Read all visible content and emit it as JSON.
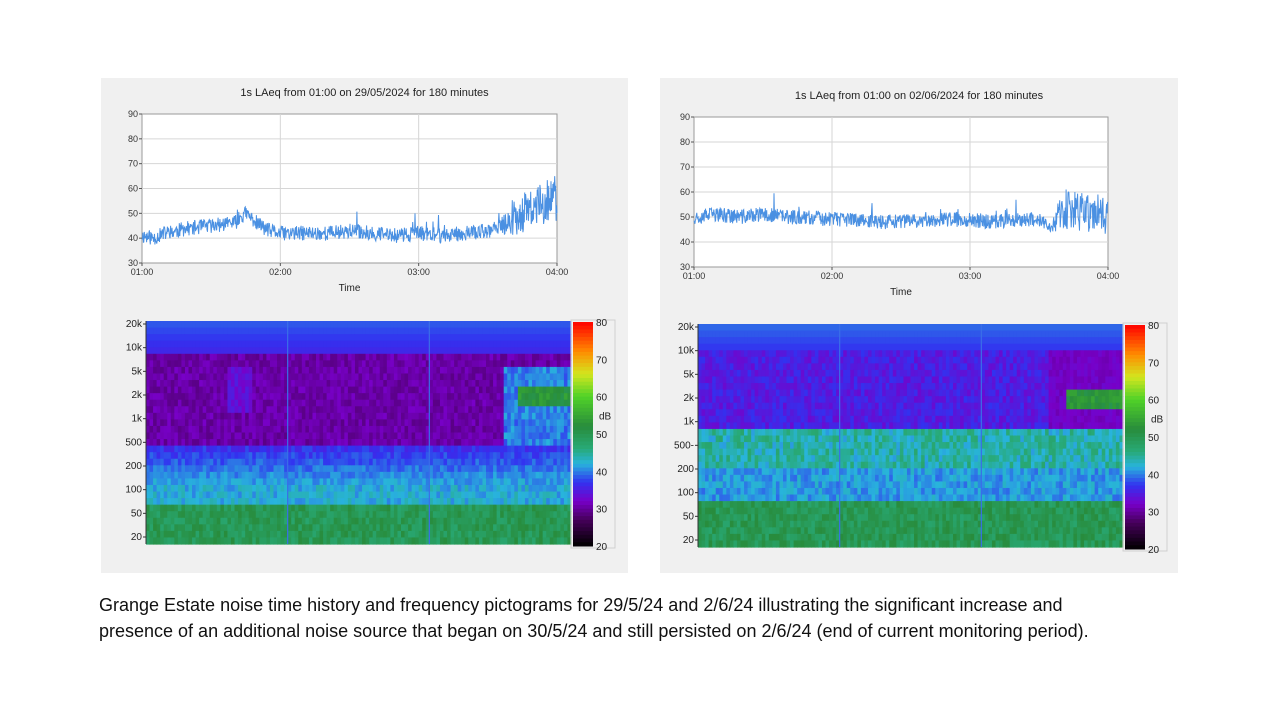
{
  "caption": "Grange Estate noise time history and frequency pictograms for 29/5/24 and 2/6/24 illustrating the significant increase and presence of an additional noise source that began on 30/5/24 and still persisted on 2/6/24 (end of current monitoring period).",
  "colors": {
    "line": "#4a90e2",
    "grid": "#d6d6d6",
    "panel": "#f0f0f0"
  },
  "chart_data": [
    {
      "type": "line",
      "title": "1s LAeq from 01:00 on 29/05/2024 for 180 minutes",
      "xlabel": "Time",
      "ylabel": "",
      "xlim": [
        0,
        180
      ],
      "ylim": [
        30,
        90
      ],
      "x_ticks": [
        "01:00",
        "02:00",
        "03:00",
        "04:00"
      ],
      "y_ticks": [
        30,
        40,
        50,
        60,
        70,
        80,
        90
      ],
      "grid": true,
      "series": [
        {
          "x": [
            0,
            5,
            10,
            20,
            30,
            40,
            45,
            50,
            55,
            60,
            70,
            80,
            90,
            100,
            110,
            120,
            130,
            140,
            150,
            155,
            160,
            165,
            170,
            175,
            180
          ],
          "y": [
            41,
            40,
            42,
            44,
            45,
            46,
            50,
            46,
            43,
            42,
            42,
            42,
            43,
            42,
            41,
            42,
            41,
            42,
            43,
            44,
            48,
            50,
            52,
            55,
            56
          ],
          "spread": [
            3,
            3,
            3,
            3,
            3,
            3,
            3,
            3,
            3,
            3,
            3,
            3,
            3,
            3,
            3,
            3,
            3,
            3,
            3,
            3,
            7,
            8,
            8,
            9,
            10
          ]
        }
      ]
    },
    {
      "type": "heatmap",
      "y_ticks": [
        "20k",
        "10k",
        "5k",
        "2k",
        "1k",
        "500",
        "200",
        "100",
        "50",
        "20"
      ],
      "colorbar_ticks": [
        80,
        70,
        60,
        50,
        40,
        30,
        20
      ],
      "colorbar_label": "dB",
      "zlim": [
        20,
        80
      ]
    },
    {
      "type": "line",
      "title": "1s LAeq from 01:00 on 02/06/2024 for 180 minutes",
      "xlabel": "Time",
      "ylabel": "",
      "xlim": [
        0,
        180
      ],
      "ylim": [
        30,
        90
      ],
      "x_ticks": [
        "01:00",
        "02:00",
        "03:00",
        "04:00"
      ],
      "y_ticks": [
        30,
        40,
        50,
        60,
        70,
        80,
        90
      ],
      "grid": true,
      "series": [
        {
          "x": [
            0,
            10,
            20,
            30,
            40,
            50,
            60,
            70,
            80,
            90,
            100,
            110,
            120,
            130,
            140,
            150,
            155,
            160,
            170,
            180
          ],
          "y": [
            50,
            51,
            50,
            51,
            50,
            50,
            49,
            49,
            48,
            48,
            49,
            49,
            49,
            48,
            49,
            49,
            46,
            52,
            52,
            51
          ],
          "spread": [
            3,
            3,
            3,
            3,
            3,
            3,
            3,
            3,
            3,
            3,
            3,
            3,
            3,
            3,
            3,
            3,
            2,
            8,
            8,
            8
          ]
        }
      ]
    },
    {
      "type": "heatmap",
      "y_ticks": [
        "20k",
        "10k",
        "5k",
        "2k",
        "1k",
        "500-",
        "200",
        "100",
        "50",
        "20"
      ],
      "colorbar_ticks": [
        80,
        70,
        60,
        50,
        40,
        30,
        20
      ],
      "colorbar_label": "dB",
      "zlim": [
        20,
        80
      ]
    }
  ]
}
